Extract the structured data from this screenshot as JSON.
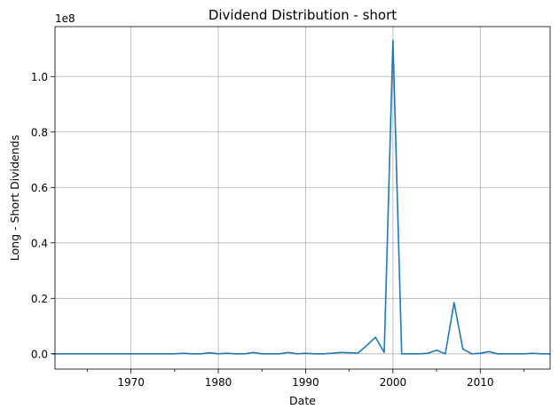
{
  "chart_data": {
    "type": "line",
    "title": "Dividend Distribution - short",
    "xlabel": "Date",
    "ylabel": "Long - Short Dividends",
    "y_multiplier_label": "1e8",
    "y_multiplier": 100000000,
    "xlim": [
      1961.3,
      2018.0
    ],
    "ylim": [
      -0.055,
      1.18
    ],
    "x_major_ticks": [
      1970,
      1980,
      1990,
      2000,
      2010
    ],
    "x_major_tick_labels": [
      "1970",
      "1980",
      "1990",
      "2000",
      "2010"
    ],
    "x_minor_ticks": [
      1965,
      1975,
      1985,
      1995,
      2005,
      2015
    ],
    "y_ticks": [
      0.0,
      0.2,
      0.4,
      0.6,
      0.8,
      1.0
    ],
    "y_tick_labels": [
      "0.0",
      "0.2",
      "0.4",
      "0.6",
      "0.8",
      "1.0"
    ],
    "grid": true,
    "legend": "none",
    "color": "#1f77b4",
    "series": [
      {
        "x": [
          1961,
          1962,
          1963,
          1964,
          1965,
          1966,
          1967,
          1968,
          1969,
          1970,
          1971,
          1972,
          1973,
          1974,
          1975,
          1976,
          1977,
          1978,
          1979,
          1980,
          1981,
          1982,
          1983,
          1984,
          1985,
          1986,
          1987,
          1988,
          1989,
          1990,
          1991,
          1992,
          1993,
          1994,
          1995,
          1996,
          1997,
          1998,
          1999,
          2000,
          2001,
          2002,
          2003,
          2004,
          2005,
          2006,
          2007,
          2008,
          2009,
          2010,
          2011,
          2012,
          2013,
          2014,
          2015,
          2016,
          2017,
          2018
        ],
        "values": [
          0.0,
          0.0,
          0.0,
          0.0,
          0.0,
          0.0,
          0.0,
          0.0,
          0.0,
          0.0,
          0.0,
          0.0,
          0.0,
          0.0,
          0.0,
          0.002,
          0.0,
          0.0,
          0.004,
          0.0,
          0.002,
          0.0,
          0.0,
          0.005,
          0.0,
          0.0,
          0.0,
          0.005,
          0.0,
          0.002,
          0.0,
          0.0,
          0.002,
          0.005,
          0.004,
          0.003,
          0.03,
          0.06,
          0.005,
          1.13,
          0.0,
          0.0,
          0.0,
          0.002,
          0.013,
          0.0,
          0.185,
          0.018,
          0.0,
          0.002,
          0.008,
          0.0,
          0.0,
          0.0,
          0.0,
          0.002,
          0.0,
          0.0
        ]
      }
    ]
  }
}
